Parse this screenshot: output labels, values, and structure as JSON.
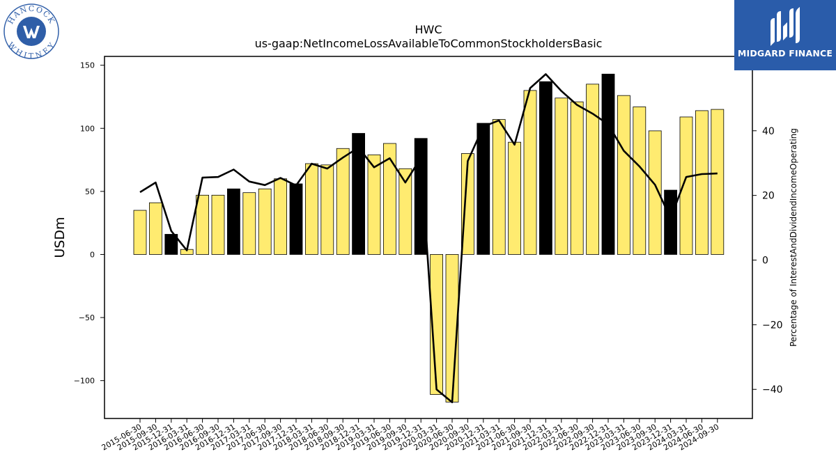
{
  "logos": {
    "left": {
      "text_top": "HANCOCK",
      "text_bottom": "WHITNEY",
      "color": "#2f5ea8"
    },
    "right": {
      "text": "MIDGARD FINANCE",
      "background": "#2a5caa"
    }
  },
  "chart_data": {
    "type": "bar",
    "title": "HWC",
    "subtitle": "us-gaap:NetIncomeLossAvailableToCommonStockholdersBasic",
    "ylabel": "USDm",
    "y2label": "Percentage of InterestAndDividendIncomeOperating",
    "ylim": [
      -130,
      157
    ],
    "y2lim": [
      -49,
      63
    ],
    "yticks": [
      -100,
      -50,
      0,
      50,
      100,
      150
    ],
    "y2ticks": [
      -40,
      -20,
      0,
      20,
      40
    ],
    "colors": {
      "bar": "#ffeb70",
      "bar_highlight": "#000000",
      "line": "#000000"
    },
    "categories": [
      "2015-06-30",
      "2015-09-30",
      "2015-12-31",
      "2016-03-31",
      "2016-06-30",
      "2016-09-30",
      "2016-12-31",
      "2017-03-31",
      "2017-06-30",
      "2017-09-30",
      "2017-12-31",
      "2018-03-31",
      "2018-06-30",
      "2018-09-30",
      "2018-12-31",
      "2019-03-31",
      "2019-06-30",
      "2019-09-30",
      "2019-12-31",
      "2020-03-31",
      "2020-06-30",
      "2020-09-30",
      "2020-12-31",
      "2021-03-31",
      "2021-06-30",
      "2021-09-30",
      "2021-12-31",
      "2022-03-31",
      "2022-06-30",
      "2022-09-30",
      "2022-12-31",
      "2023-03-31",
      "2023-06-30",
      "2023-09-30",
      "2023-12-31",
      "2024-03-31",
      "2024-06-30",
      "2024-09-30"
    ],
    "series": [
      {
        "type": "bar",
        "values": [
          35,
          41,
          16,
          4,
          47,
          47,
          52,
          49,
          52,
          60,
          56,
          72,
          71,
          84,
          96,
          79,
          88,
          68,
          92,
          -111,
          -117,
          80,
          104,
          107,
          89,
          130,
          137,
          124,
          121,
          135,
          143,
          126,
          117,
          98,
          51,
          109,
          114,
          115
        ],
        "highlight": [
          false,
          false,
          true,
          false,
          false,
          false,
          true,
          false,
          false,
          false,
          true,
          false,
          false,
          false,
          true,
          false,
          false,
          false,
          true,
          false,
          false,
          false,
          true,
          false,
          false,
          false,
          true,
          false,
          false,
          false,
          true,
          false,
          false,
          false,
          true,
          false,
          false,
          false
        ]
      },
      {
        "type": "line",
        "axis": "right",
        "values": [
          21,
          24,
          9,
          3,
          25.5,
          25.7,
          28,
          24.3,
          23.2,
          25.4,
          23.1,
          29.8,
          28.3,
          31.7,
          34.8,
          28.7,
          31.5,
          24,
          31.6,
          -40,
          -44,
          30.6,
          41.3,
          43.2,
          35.7,
          53.2,
          57.5,
          52.3,
          48,
          45.3,
          42,
          33.8,
          29,
          23.3,
          12.9,
          25.7,
          26.6,
          26.8
        ]
      }
    ]
  }
}
